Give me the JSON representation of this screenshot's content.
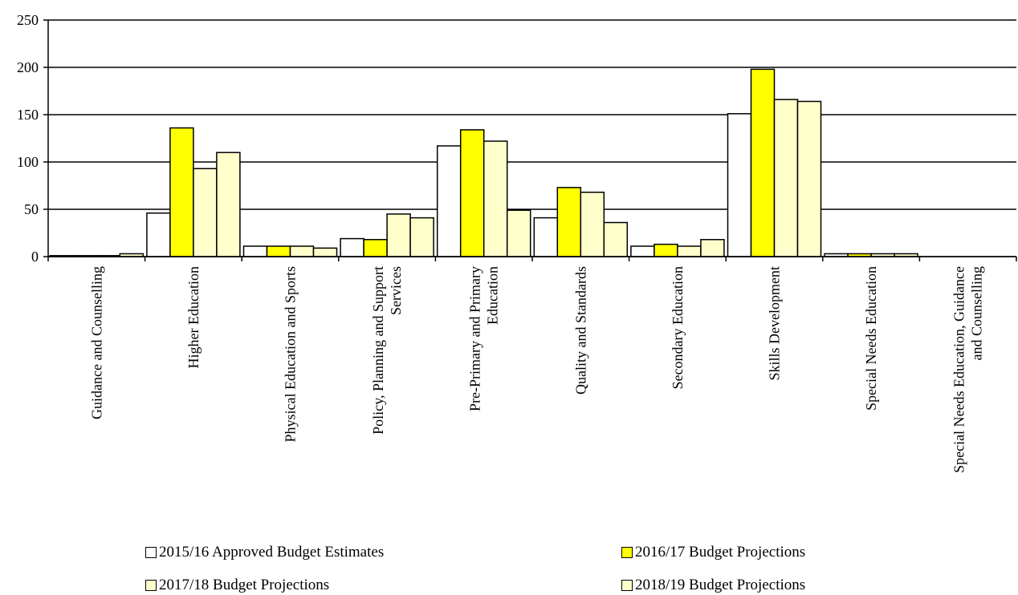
{
  "chart_data": {
    "type": "bar",
    "title": "",
    "xlabel": "",
    "ylabel": "",
    "ylim": [
      0,
      250
    ],
    "yticks": [
      0,
      50,
      100,
      150,
      200,
      250
    ],
    "grid": true,
    "legend_position": "bottom",
    "categories": [
      "Guidance and Counselling",
      "Higher Education",
      "Physical Education and Sports",
      "Policy, Planning and Support Services",
      "Pre-Primary and Primary Education",
      "Quality and Standards",
      "Secondary Education",
      "Skills Development",
      "Special Needs Education",
      "Special Needs Education, Guidance and Counselling"
    ],
    "category_label_lines": [
      [
        "Guidance and Counselling"
      ],
      [
        "Higher Education"
      ],
      [
        "Physical Education and Sports"
      ],
      [
        "Policy, Planning and Support",
        "Services"
      ],
      [
        "Pre-Primary and Primary",
        "Education"
      ],
      [
        "Quality and Standards"
      ],
      [
        "Secondary Education"
      ],
      [
        "Skills Development"
      ],
      [
        "Special Needs Education"
      ],
      [
        "Special Needs Education, Guidance",
        "and Counselling"
      ]
    ],
    "series": [
      {
        "name": "2015/16 Approved Budget Estimates",
        "color": "#ffffff",
        "values": [
          1,
          46,
          11,
          19,
          117,
          41,
          11,
          151,
          3,
          0
        ]
      },
      {
        "name": "2016/17 Budget Projections",
        "color": "#ffff00",
        "values": [
          1,
          136,
          11,
          18,
          134,
          73,
          13,
          198,
          3,
          0
        ]
      },
      {
        "name": "2017/18 Budget Projections",
        "color": "#ffffcc",
        "values": [
          1,
          93,
          11,
          45,
          122,
          68,
          11,
          166,
          3,
          0
        ]
      },
      {
        "name": "2018/19 Budget Projections",
        "color": "#ffffcc",
        "values": [
          3,
          110,
          9,
          41,
          49,
          36,
          18,
          164,
          3,
          0
        ]
      }
    ]
  }
}
